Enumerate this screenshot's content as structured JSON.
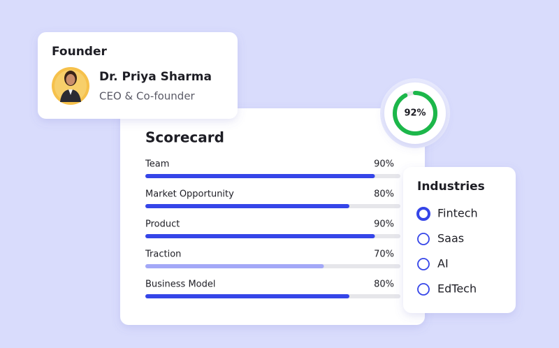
{
  "founder": {
    "heading": "Founder",
    "name": "Dr. Priya Sharma",
    "role": "CEO & Co-founder"
  },
  "scorecard": {
    "title": "Scorecard",
    "max": 100,
    "rows": [
      {
        "label": "Team",
        "value": 90,
        "value_label": "90%",
        "color": "#3545e8"
      },
      {
        "label": "Market Opportunity",
        "value": 80,
        "value_label": "80%",
        "color": "#3545e8"
      },
      {
        "label": "Product",
        "value": 90,
        "value_label": "90%",
        "color": "#3545e8"
      },
      {
        "label": "Traction",
        "value": 70,
        "value_label": "70%",
        "color": "#a3a8f7"
      },
      {
        "label": "Business Model",
        "value": 80,
        "value_label": "80%",
        "color": "#3545e8"
      }
    ]
  },
  "score": {
    "value": 92,
    "label": "92%",
    "color": "#1cb74a"
  },
  "industries": {
    "title": "Industries",
    "options": [
      {
        "label": "Fintech",
        "selected": true
      },
      {
        "label": "Saas",
        "selected": false
      },
      {
        "label": "AI",
        "selected": false
      },
      {
        "label": "EdTech",
        "selected": false
      }
    ]
  }
}
